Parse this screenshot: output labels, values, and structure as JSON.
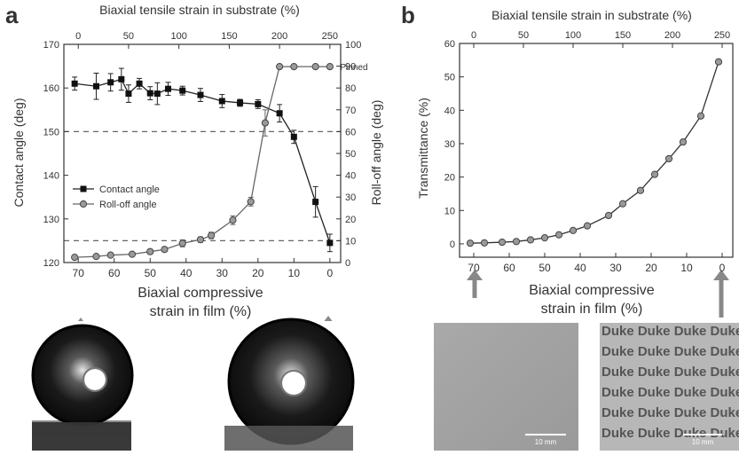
{
  "panels": {
    "a": {
      "letter": "a",
      "top_axis_label": "Biaxial tensile strain in substrate (%)",
      "left_axis_label": "Contact angle (deg)",
      "right_axis_label": "Roll-off angle (deg)",
      "bottom_axis_label_line1": "Biaxial compressive",
      "bottom_axis_label_line2": "strain in film (%)",
      "pinned_label": "Pinned",
      "legend": [
        "Contact angle",
        "Roll-off angle"
      ]
    },
    "b": {
      "letter": "b",
      "top_axis_label": "Biaxial tensile strain in substrate (%)",
      "left_axis_label": "Transmittance (%)",
      "bottom_axis_label_line1": "Biaxial compressive",
      "bottom_axis_label_line2": "strain in film (%)",
      "scale_bar_left": "10 mm",
      "scale_bar_right": "10 mm",
      "duke_word": "Duke"
    }
  },
  "chart_data": [
    {
      "type": "line",
      "panel": "a",
      "x_label_bottom": "Biaxial compressive strain in film (%)",
      "x_label_top": "Biaxial tensile strain in substrate (%)",
      "xlim": [
        74,
        -3
      ],
      "x_ticks_bottom": [
        70,
        60,
        50,
        40,
        30,
        20,
        10,
        0
      ],
      "x_ticks_top": [
        0,
        50,
        100,
        150,
        200,
        250
      ],
      "ylim": [
        120,
        170
      ],
      "y_ticks": [
        120,
        130,
        140,
        150,
        160,
        170
      ],
      "y2lim": [
        0,
        100
      ],
      "y2_ticks": [
        0,
        10,
        20,
        30,
        40,
        50,
        60,
        70,
        80,
        90,
        100
      ],
      "ylabel": "Contact angle (deg)",
      "y2label": "Roll-off angle (deg)",
      "legend_position": "middle-left",
      "reference_lines": [
        {
          "axis": "y",
          "value": 150
        },
        {
          "axis": "y",
          "value": 125
        }
      ],
      "series": [
        {
          "name": "Contact angle",
          "axis": "left",
          "marker": "square",
          "x": [
            71,
            65,
            61,
            58,
            56,
            53,
            50,
            48,
            45,
            41,
            36,
            30,
            25,
            20,
            14,
            10,
            4,
            0
          ],
          "y": [
            161.0,
            160.4,
            161.3,
            162.0,
            158.7,
            161.0,
            158.8,
            158.7,
            159.8,
            159.4,
            158.4,
            157.0,
            156.6,
            156.3,
            154.2,
            148.8,
            133.9,
            124.5
          ],
          "err": [
            1.5,
            3.0,
            2.0,
            2.5,
            2.0,
            1.2,
            1.5,
            2.5,
            1.5,
            1.0,
            1.5,
            1.5,
            0.8,
            1.0,
            2.0,
            1.5,
            3.5,
            2.0
          ]
        },
        {
          "name": "Roll-off angle",
          "axis": "right",
          "marker": "circle",
          "x": [
            71,
            65,
            61,
            55,
            50,
            46,
            41,
            36,
            33,
            27,
            22,
            18,
            14,
            10,
            4,
            0
          ],
          "y": [
            2.4,
            2.8,
            3.4,
            3.8,
            5.0,
            6.0,
            8.8,
            10.5,
            12.4,
            19.4,
            27.9,
            64.0,
            89.8,
            89.8,
            89.8,
            89.8
          ],
          "err": [
            0.8,
            0.6,
            0.8,
            0.8,
            1.0,
            1.0,
            1.6,
            1.2,
            1.5,
            2.0,
            2.0,
            6.0,
            0,
            0,
            0,
            0
          ]
        }
      ]
    },
    {
      "type": "line",
      "panel": "b",
      "x_label_bottom": "Biaxial compressive strain in film (%)",
      "x_label_top": "Biaxial tensile strain in substrate (%)",
      "xlim": [
        74,
        -3
      ],
      "x_ticks_bottom": [
        70,
        60,
        50,
        40,
        30,
        20,
        10,
        0
      ],
      "x_ticks_top": [
        0,
        50,
        100,
        150,
        200,
        250
      ],
      "ylim": [
        -4,
        60
      ],
      "y_ticks": [
        0,
        10,
        20,
        30,
        40,
        50,
        60
      ],
      "ylabel": "Transmittance (%)",
      "series": [
        {
          "name": "",
          "marker": "circle",
          "x": [
            71,
            67,
            62,
            58,
            54,
            50,
            46,
            42,
            38,
            32,
            28,
            23,
            19,
            15,
            11,
            6,
            1
          ],
          "y": [
            0.2,
            0.3,
            0.5,
            0.7,
            1.2,
            1.8,
            2.7,
            4.0,
            5.4,
            8.5,
            12.0,
            16.0,
            20.8,
            25.5,
            30.5,
            38.3,
            54.5
          ]
        }
      ]
    }
  ]
}
